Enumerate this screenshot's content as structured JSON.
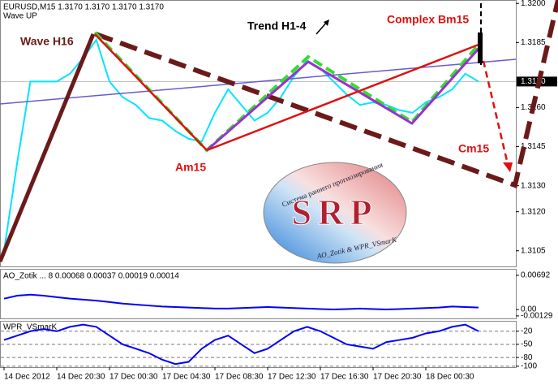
{
  "header": {
    "symbol_line": "EURUSD,M15  1.3170 1.3170 1.3170 1.3170",
    "indicator": "Wave UP"
  },
  "logo": {
    "arc_text": "Система раннего прогнозирования",
    "letters": "SRP",
    "footer": "AO_Zotik & WPR_VSmarK"
  },
  "chart_data": [
    {
      "type": "line",
      "annotations": [
        "Wave H16",
        "Trend H1-4",
        "Complex Bm15",
        "Am15",
        "Cm15"
      ],
      "categories": [
        "14 Dec 2012",
        null,
        null,
        null,
        "14 Dec 20:30",
        null,
        null,
        null,
        "17 Dec 00:30",
        null,
        null,
        null,
        "17 Dec 04:30",
        null,
        null,
        null,
        "17 Dec 08:30",
        null,
        null,
        null,
        "17 Dec 12:30",
        null,
        null,
        null,
        "17 Dec 16:30",
        null,
        null,
        null,
        "17 Dec 20:30",
        null,
        null,
        null,
        "18 Dec 00:30",
        null,
        null,
        null,
        null
      ],
      "values": [
        1.3105,
        1.3139,
        1.317,
        1.317,
        1.317,
        1.3173,
        1.3179,
        1.3186,
        1.317,
        1.3164,
        1.3161,
        1.3156,
        1.3155,
        1.3151,
        1.3148,
        1.3147,
        1.3158,
        1.3167,
        1.3161,
        1.3155,
        1.3158,
        1.3164,
        1.3172,
        1.3178,
        1.3175,
        1.317,
        1.3165,
        1.3161,
        1.3162,
        1.3161,
        1.3159,
        1.3158,
        1.3162,
        1.3164,
        1.3167,
        1.3173,
        1.317
      ],
      "color": "#00e5ff",
      "ylim": [
        1.3099,
        1.3201
      ],
      "yticks": [
        {
          "value": 1.32,
          "label": "1.3200"
        },
        {
          "value": 1.3185,
          "label": "1.3185"
        },
        {
          "value": 1.316,
          "label": "1.3160"
        },
        {
          "value": 1.3145,
          "label": "1.3145"
        },
        {
          "value": 1.313,
          "label": "1.3130"
        },
        {
          "value": 1.312,
          "label": "1.3120"
        },
        {
          "value": 1.3105,
          "label": "1.3105"
        }
      ],
      "last_price": {
        "value": 1.317,
        "label": "1.3170"
      },
      "grid": false
    },
    {
      "type": "line",
      "title": "AO_Zotik ... 8 0.00068 0.00037 0.00019 0.00014",
      "values": [
        0.0022,
        0.0028,
        0.003,
        0.0028,
        0.0025,
        0.0022,
        0.002,
        0.0018,
        0.0015,
        0.0012,
        0.001,
        0.0008,
        0.0006,
        0.0005,
        0.0004,
        0.0003,
        0.0002,
        0.0002,
        0.0003,
        0.0004,
        0.0005,
        0.0004,
        0.0003,
        0.0002,
        0.0001,
        0,
        0.0001,
        0.0002,
        0.0001,
        0,
        0.0001,
        0.0002,
        0.0003,
        0.0004,
        0.0006,
        0.0005,
        0.0004
      ],
      "color": "#0000ff",
      "ylim": [
        -0.0018,
        0.0079
      ],
      "yticks": [
        0.00692,
        {
          "value": 0,
          "label": "0.00"
        },
        -0.00129
      ],
      "grid": false
    },
    {
      "type": "line",
      "title": "WPR_VSmarK",
      "values": [
        -40,
        -30,
        -20,
        -15,
        -20,
        -10,
        -5,
        -10,
        -30,
        -50,
        -60,
        -70,
        -85,
        -95,
        -90,
        -60,
        -40,
        -30,
        -50,
        -70,
        -60,
        -40,
        -20,
        -10,
        -20,
        -35,
        -50,
        -55,
        -60,
        -45,
        -40,
        -35,
        -25,
        -20,
        -10,
        -5,
        -20
      ],
      "color": "#0000ff",
      "ylim": [
        -102,
        0
      ],
      "yticks": [
        -20,
        -50,
        -80,
        -100
      ],
      "grid": true
    }
  ]
}
